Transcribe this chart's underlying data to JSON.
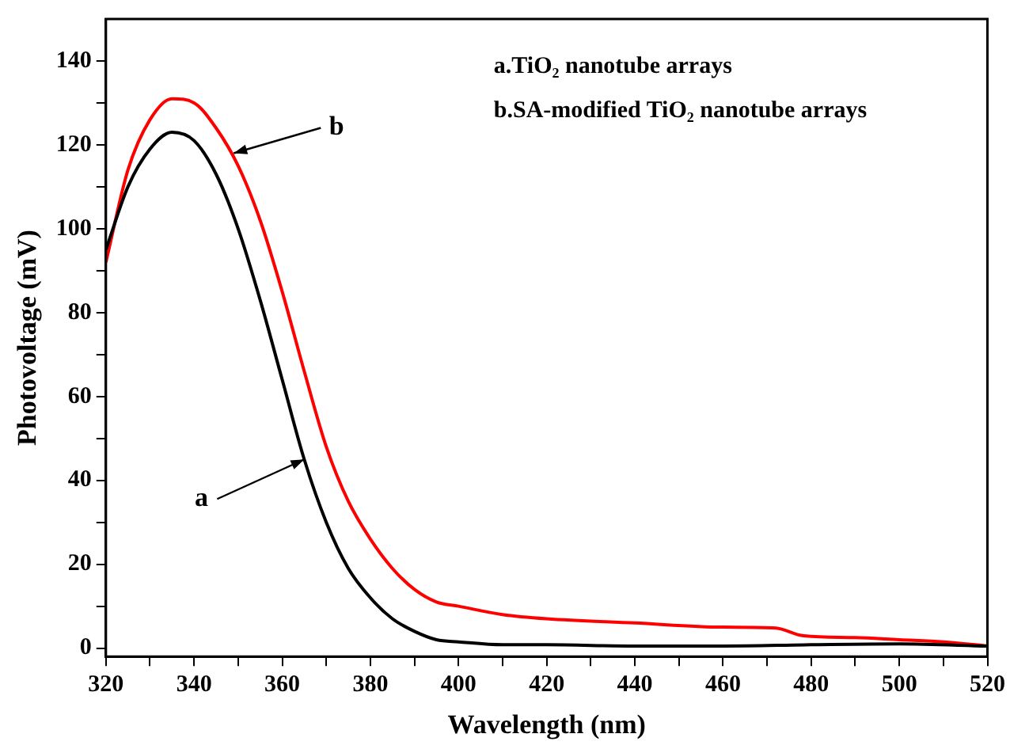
{
  "chart_data": {
    "type": "line",
    "xlabel": "Wavelength (nm)",
    "ylabel": "Photovoltage (mV)",
    "xlim": [
      320,
      520
    ],
    "ylim": [
      -2,
      150
    ],
    "xticks": [
      320,
      {
        "value": 330,
        "label": null
      },
      340,
      {
        "value": 350,
        "label": null
      },
      360,
      {
        "value": 370,
        "label": null
      },
      380,
      {
        "value": 390,
        "label": null
      },
      400,
      {
        "value": 410,
        "label": null
      },
      420,
      {
        "value": 430,
        "label": null
      },
      440,
      {
        "value": 450,
        "label": null
      },
      460,
      {
        "value": 470,
        "label": null
      },
      480,
      {
        "value": 490,
        "label": null
      },
      500,
      {
        "value": 510,
        "label": null
      },
      520
    ],
    "yticks": [
      0,
      {
        "value": 10,
        "label": null
      },
      20,
      {
        "value": 30,
        "label": null
      },
      40,
      {
        "value": 50,
        "label": null
      },
      60,
      {
        "value": 70,
        "label": null
      },
      80,
      {
        "value": 90,
        "label": null
      },
      100,
      {
        "value": 110,
        "label": null
      },
      120,
      {
        "value": 130,
        "label": null
      },
      140
    ],
    "grid": false,
    "legend": false,
    "marker": "none",
    "line_style": "solid",
    "series": [
      {
        "color": "#000000",
        "x": [
          320,
          325,
          330,
          335,
          340,
          345,
          350,
          355,
          360,
          365,
          370,
          375,
          380,
          385,
          390,
          395,
          400,
          410,
          420,
          440,
          460,
          480,
          500,
          520
        ],
        "values": [
          95,
          110,
          119,
          123,
          121,
          113,
          100,
          83,
          64,
          45,
          30,
          19,
          12,
          7,
          4,
          2,
          1.5,
          0.8,
          0.8,
          0.5,
          0.5,
          0.8,
          1,
          0.5
        ]
      },
      {
        "color": "#ff0000",
        "x": [
          320,
          325,
          330,
          335,
          340,
          345,
          350,
          355,
          360,
          365,
          370,
          375,
          380,
          385,
          390,
          395,
          400,
          410,
          420,
          440,
          460,
          472,
          478,
          490,
          500,
          510,
          520
        ],
        "values": [
          92,
          114,
          126,
          131,
          130,
          124,
          115,
          102,
          85,
          66,
          48,
          35,
          26,
          19,
          14,
          11,
          10,
          8,
          7,
          6,
          5,
          4.8,
          3,
          2.5,
          2,
          1.5,
          0.5
        ]
      }
    ],
    "annotations": [
      "a.TiO₂ nanotube arrays",
      "b.SA-modified TiO₂ nanotube arrays",
      {
        "text": "a",
        "x": 365,
        "y": 45
      },
      {
        "text": "b",
        "x": 349,
        "y": 118
      }
    ]
  }
}
